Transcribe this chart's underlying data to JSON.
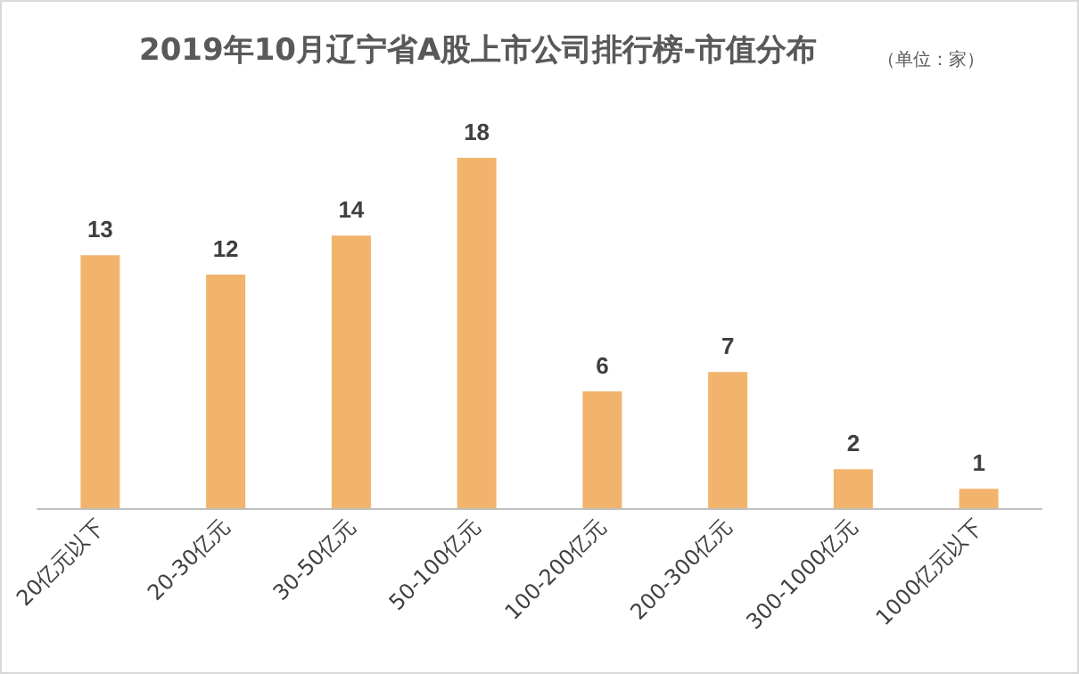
{
  "chart_data": {
    "type": "bar",
    "title": "2019年10月辽宁省A股上市公司排行榜-市值分布",
    "subtitle": "（单位：家）",
    "categories": [
      "20亿元以下",
      "20-30亿元",
      "30-50亿元",
      "50-100亿元",
      "100-200亿元",
      "200-300亿元",
      "300-1000亿元",
      "1000亿元以下"
    ],
    "values": [
      13,
      12,
      14,
      18,
      6,
      7,
      2,
      1
    ],
    "color": "#f2b46c",
    "data_labels": true
  }
}
